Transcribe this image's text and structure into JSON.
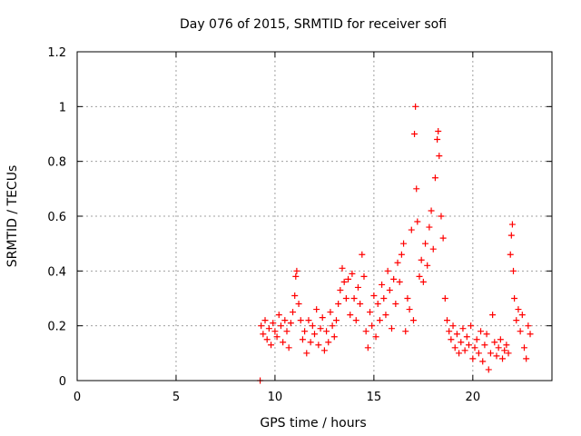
{
  "chart_data": {
    "type": "scatter",
    "title": "Day 076 of 2015, SRMTID for receiver sofi",
    "xlabel": "GPS time / hours",
    "ylabel": "SRMTID / TECUs",
    "xlim": [
      0,
      24
    ],
    "ylim": [
      0,
      1.2
    ],
    "xticks": [
      0,
      5,
      10,
      15,
      20
    ],
    "xtick_labels": [
      "0",
      "5",
      "10",
      "15",
      "20"
    ],
    "yticks": [
      0,
      0.2,
      0.4,
      0.6,
      0.8,
      1,
      1.2
    ],
    "ytick_labels": [
      "0",
      "0.2",
      "0.4",
      "0.6",
      "0.8",
      "1",
      "1.2"
    ],
    "grid": true,
    "marker": "+",
    "series": [
      {
        "name": "SRMTID",
        "color": "#ff0000",
        "points": [
          [
            9.25,
            0.0
          ],
          [
            9.3,
            0.2
          ],
          [
            9.4,
            0.17
          ],
          [
            9.5,
            0.22
          ],
          [
            9.6,
            0.15
          ],
          [
            9.7,
            0.19
          ],
          [
            9.8,
            0.13
          ],
          [
            9.9,
            0.21
          ],
          [
            10.0,
            0.18
          ],
          [
            10.1,
            0.16
          ],
          [
            10.2,
            0.24
          ],
          [
            10.3,
            0.2
          ],
          [
            10.4,
            0.14
          ],
          [
            10.5,
            0.22
          ],
          [
            10.6,
            0.18
          ],
          [
            10.7,
            0.12
          ],
          [
            10.8,
            0.21
          ],
          [
            10.9,
            0.25
          ],
          [
            11.0,
            0.31
          ],
          [
            11.05,
            0.38
          ],
          [
            11.1,
            0.4
          ],
          [
            11.2,
            0.28
          ],
          [
            11.3,
            0.22
          ],
          [
            11.4,
            0.15
          ],
          [
            11.5,
            0.18
          ],
          [
            11.6,
            0.1
          ],
          [
            11.7,
            0.22
          ],
          [
            11.8,
            0.14
          ],
          [
            11.9,
            0.2
          ],
          [
            12.0,
            0.17
          ],
          [
            12.1,
            0.26
          ],
          [
            12.2,
            0.13
          ],
          [
            12.3,
            0.19
          ],
          [
            12.4,
            0.23
          ],
          [
            12.5,
            0.11
          ],
          [
            12.6,
            0.18
          ],
          [
            12.7,
            0.14
          ],
          [
            12.8,
            0.25
          ],
          [
            12.9,
            0.2
          ],
          [
            13.0,
            0.16
          ],
          [
            13.1,
            0.22
          ],
          [
            13.2,
            0.28
          ],
          [
            13.3,
            0.33
          ],
          [
            13.4,
            0.41
          ],
          [
            13.5,
            0.36
          ],
          [
            13.6,
            0.3
          ],
          [
            13.7,
            0.37
          ],
          [
            13.8,
            0.24
          ],
          [
            13.9,
            0.39
          ],
          [
            14.0,
            0.3
          ],
          [
            14.1,
            0.22
          ],
          [
            14.2,
            0.34
          ],
          [
            14.3,
            0.28
          ],
          [
            14.4,
            0.46
          ],
          [
            14.5,
            0.38
          ],
          [
            14.6,
            0.18
          ],
          [
            14.7,
            0.12
          ],
          [
            14.8,
            0.25
          ],
          [
            14.9,
            0.2
          ],
          [
            15.0,
            0.31
          ],
          [
            15.1,
            0.16
          ],
          [
            15.2,
            0.28
          ],
          [
            15.3,
            0.22
          ],
          [
            15.4,
            0.35
          ],
          [
            15.5,
            0.3
          ],
          [
            15.6,
            0.24
          ],
          [
            15.7,
            0.4
          ],
          [
            15.8,
            0.33
          ],
          [
            15.9,
            0.19
          ],
          [
            16.0,
            0.37
          ],
          [
            16.1,
            0.28
          ],
          [
            16.2,
            0.43
          ],
          [
            16.3,
            0.36
          ],
          [
            16.4,
            0.46
          ],
          [
            16.5,
            0.5
          ],
          [
            16.6,
            0.18
          ],
          [
            16.7,
            0.3
          ],
          [
            16.8,
            0.26
          ],
          [
            16.9,
            0.55
          ],
          [
            17.0,
            0.22
          ],
          [
            17.05,
            0.9
          ],
          [
            17.1,
            1.0
          ],
          [
            17.15,
            0.7
          ],
          [
            17.2,
            0.58
          ],
          [
            17.3,
            0.38
          ],
          [
            17.4,
            0.44
          ],
          [
            17.5,
            0.36
          ],
          [
            17.6,
            0.5
          ],
          [
            17.7,
            0.42
          ],
          [
            17.8,
            0.56
          ],
          [
            17.9,
            0.62
          ],
          [
            18.0,
            0.48
          ],
          [
            18.1,
            0.74
          ],
          [
            18.2,
            0.88
          ],
          [
            18.25,
            0.91
          ],
          [
            18.3,
            0.82
          ],
          [
            18.4,
            0.6
          ],
          [
            18.5,
            0.52
          ],
          [
            18.6,
            0.3
          ],
          [
            18.7,
            0.22
          ],
          [
            18.8,
            0.18
          ],
          [
            18.9,
            0.15
          ],
          [
            19.0,
            0.2
          ],
          [
            19.1,
            0.12
          ],
          [
            19.2,
            0.17
          ],
          [
            19.3,
            0.1
          ],
          [
            19.4,
            0.14
          ],
          [
            19.5,
            0.19
          ],
          [
            19.6,
            0.11
          ],
          [
            19.7,
            0.16
          ],
          [
            19.8,
            0.13
          ],
          [
            19.9,
            0.2
          ],
          [
            20.0,
            0.08
          ],
          [
            20.1,
            0.12
          ],
          [
            20.2,
            0.15
          ],
          [
            20.3,
            0.1
          ],
          [
            20.4,
            0.18
          ],
          [
            20.5,
            0.07
          ],
          [
            20.6,
            0.13
          ],
          [
            20.7,
            0.17
          ],
          [
            20.8,
            0.04
          ],
          [
            20.9,
            0.1
          ],
          [
            21.0,
            0.24
          ],
          [
            21.1,
            0.14
          ],
          [
            21.2,
            0.09
          ],
          [
            21.3,
            0.12
          ],
          [
            21.4,
            0.15
          ],
          [
            21.5,
            0.08
          ],
          [
            21.6,
            0.11
          ],
          [
            21.7,
            0.13
          ],
          [
            21.8,
            0.1
          ],
          [
            21.9,
            0.46
          ],
          [
            21.95,
            0.53
          ],
          [
            22.0,
            0.57
          ],
          [
            22.05,
            0.4
          ],
          [
            22.1,
            0.3
          ],
          [
            22.2,
            0.22
          ],
          [
            22.3,
            0.26
          ],
          [
            22.4,
            0.18
          ],
          [
            22.5,
            0.24
          ],
          [
            22.6,
            0.12
          ],
          [
            22.7,
            0.08
          ],
          [
            22.8,
            0.2
          ],
          [
            22.9,
            0.17
          ]
        ]
      }
    ]
  }
}
